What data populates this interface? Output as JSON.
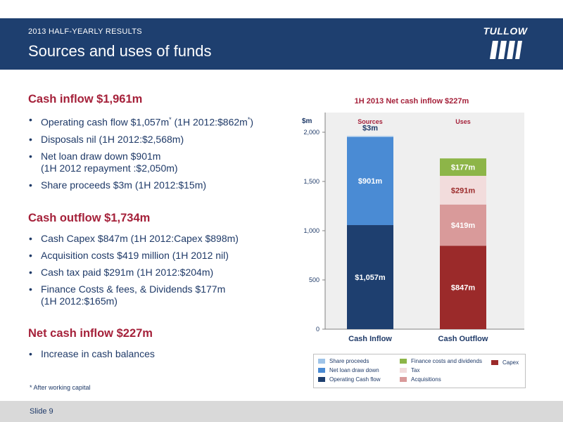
{
  "header": {
    "subtitle": "2013 HALF-YEARLY RESULTS",
    "title": "Sources and uses of funds",
    "logo_text": "TULLOW"
  },
  "sections": [
    {
      "heading": "Cash inflow $1,961m",
      "bullets": [
        [
          "Operating cash flow $1,057m* (1H 2012:$862m*)"
        ],
        [
          "Disposals nil (1H 2012:$2,568m)"
        ],
        [
          "Net loan draw down $901m",
          "(1H 2012 repayment :$2,050m)"
        ],
        [
          "Share proceeds $3m (1H 2012:$15m)"
        ]
      ]
    },
    {
      "heading": "Cash outflow $1,734m",
      "bullets": [
        [
          "Cash Capex $847m (1H 2012:Capex $898m)"
        ],
        [
          "Acquisition costs $419 million (1H 2012 nil)"
        ],
        [
          "Cash tax paid $291m (1H 2012:$204m)"
        ],
        [
          "Finance Costs & fees, & Dividends $177m",
          "(1H 2012:$165m)"
        ]
      ]
    },
    {
      "heading": "Net cash inflow $227m",
      "bullets": [
        [
          "Increase in cash balances"
        ]
      ]
    }
  ],
  "footnote": "* After working capital",
  "footer": {
    "slide": "Slide 9"
  },
  "chart_data": {
    "type": "bar",
    "stacked": true,
    "title": "1H 2013 Net cash inflow $227m",
    "ylabel": "$m",
    "ylim": [
      0,
      2200
    ],
    "yticks": [
      0,
      500,
      1000,
      1500,
      2000
    ],
    "ytick_labels": [
      "0",
      "500",
      "1,000",
      "1,500",
      "2,000"
    ],
    "categories": [
      "Cash Inflow",
      "Cash Outflow"
    ],
    "group_labels": [
      "Sources",
      "Uses"
    ],
    "series": [
      {
        "name": "Operating Cash flow",
        "color": "#1e3f6f",
        "values": [
          1057,
          0
        ],
        "labels": [
          "$1,057m",
          ""
        ]
      },
      {
        "name": "Net loan draw down",
        "color": "#4a8bd4",
        "values": [
          901,
          0
        ],
        "labels": [
          "$901m",
          ""
        ]
      },
      {
        "name": "Share proceeds",
        "color": "#9fc4e8",
        "values": [
          3,
          0
        ],
        "labels": [
          "$3m",
          ""
        ]
      },
      {
        "name": "Capex",
        "color": "#9b2a2a",
        "values": [
          0,
          847
        ],
        "labels": [
          "",
          "$847m"
        ]
      },
      {
        "name": "Acquisitions",
        "color": "#d99a9a",
        "values": [
          0,
          419
        ],
        "labels": [
          "",
          "$419m"
        ]
      },
      {
        "name": "Tax",
        "color": "#f2dcdc",
        "values": [
          0,
          291
        ],
        "labels": [
          "",
          "$291m"
        ]
      },
      {
        "name": "Finance costs and dividends",
        "color": "#8db548",
        "values": [
          0,
          177
        ],
        "labels": [
          "",
          "$177m"
        ]
      }
    ],
    "grid": false,
    "legend_position": "bottom"
  }
}
